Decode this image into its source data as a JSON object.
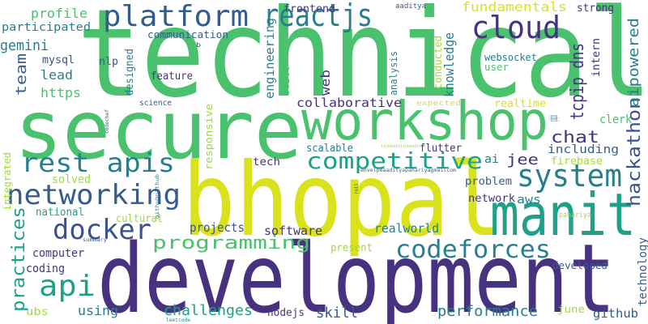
{
  "colors": {
    "purple": "#46327e",
    "indigo": "#3b528b",
    "blue": "#365c8d",
    "teal": "#277f8e",
    "aqua": "#1fa187",
    "green": "#4ac16d",
    "lime": "#a0da39",
    "yellow": "#d9e21b"
  },
  "words": [
    "technical",
    "secure",
    "bhopal",
    "development",
    "workshop",
    "manit",
    "reactjs",
    "platform",
    "cloud",
    "system",
    "rest apis",
    "networking",
    "docker",
    "competitive",
    "api",
    "programming",
    "codeforces",
    "hackathon",
    "practices",
    "aipowered",
    "tcpip dns",
    "knowledge",
    "engineering",
    "chat",
    "fundamentals",
    "including",
    "jee",
    "ai",
    "firebase",
    "web",
    "team",
    "lead",
    "https",
    "gemini",
    "mysql",
    "nlp",
    "profile",
    "participated",
    "communication",
    "frontend",
    "aaditya",
    "strong",
    "conducted",
    "websocket",
    "user",
    "intern",
    "feature",
    "designed",
    "analysis",
    "built",
    "science",
    "responsive",
    "collaborative",
    "realtime",
    "clerk",
    "expected",
    "flutter",
    "scalable",
    "tech",
    "integrated",
    "solved",
    "national",
    "cultural",
    "projects",
    "software",
    "realworld",
    "present",
    "network",
    "aws",
    "problem",
    "computer",
    "coding",
    "developed",
    "technology",
    "using",
    "challenges",
    "nodejs",
    "skill",
    "performance",
    "github",
    "june",
    "ubs",
    "summary",
    "leetcode",
    "codechef",
    "githubgithub",
    "roll",
    "pahariya",
    "envelpeaadityapahariyagmailcom",
    "linkedinlinkedin",
    "b"
  ]
}
